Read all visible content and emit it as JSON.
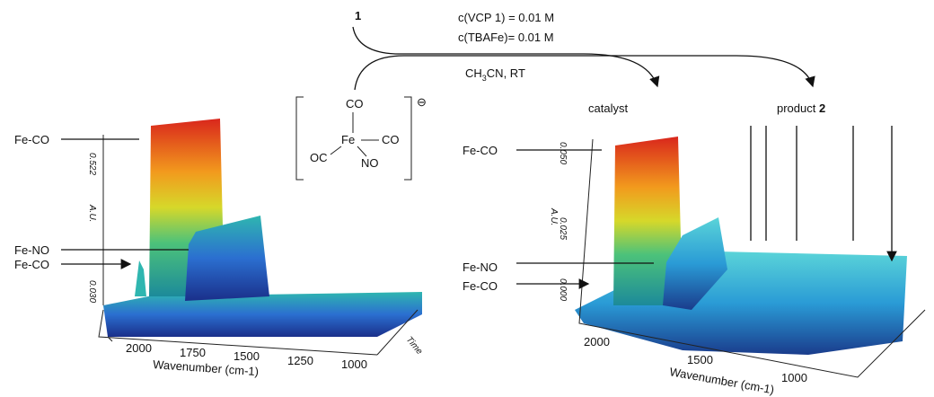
{
  "reaction": {
    "reactant": "1",
    "conditions": [
      "c(VCP 1) = 0.01 M",
      "c(TBAFe)= 0.01 M"
    ],
    "solvent": {
      "main": "CH",
      "subscript": "3",
      "rest": "CN, RT"
    }
  },
  "catalyst_structure": {
    "ligands": [
      "CO",
      "CO",
      "OC",
      "NO"
    ],
    "metal": "Fe",
    "charge": "⊖"
  },
  "left_plot": {
    "labels": [
      "Fe-CO",
      "Fe-NO",
      "Fe-CO"
    ],
    "y_axis_label": "A.U.",
    "y_ticks": [
      "0.522",
      "0.030"
    ],
    "x_ticks": [
      "2000",
      "1750",
      "1500",
      "1250",
      "1000"
    ],
    "x_axis_label": "Wavenumber (cm-1)",
    "time_label": "Time"
  },
  "right_plot": {
    "labels": [
      "Fe-CO",
      "Fe-NO",
      "Fe-CO"
    ],
    "catalyst": "catalyst",
    "product": {
      "text": "product",
      "number": "2"
    },
    "y_axis_label": "A.U.",
    "y_ticks": [
      "0.050",
      "0.025",
      "0.000"
    ],
    "x_ticks": [
      "2000",
      "1500",
      "1000"
    ],
    "x_axis_label": "Wavenumber (cm-1)"
  }
}
